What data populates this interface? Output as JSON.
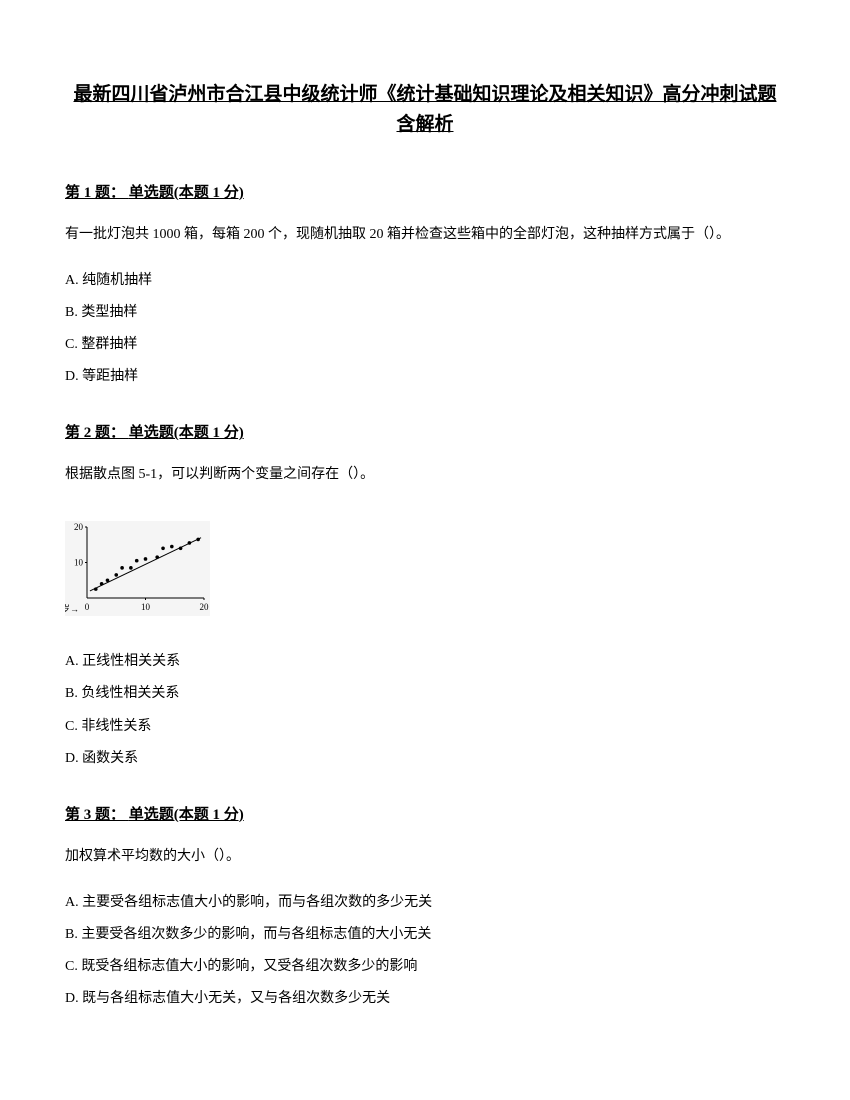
{
  "title": "最新四川省泸州市合江县中级统计师《统计基础知识理论及相关知识》高分冲刺试题含解析",
  "questions": [
    {
      "number": "第 1 题：",
      "type": "单选题(本题 1 分)",
      "text": "有一批灯泡共 1000 箱，每箱 200 个，现随机抽取 20 箱并检查这些箱中的全部灯泡，这种抽样方式属于（）。",
      "options": {
        "a": "A. 纯随机抽样",
        "b": "B. 类型抽样",
        "c": "C. 整群抽样",
        "d": "D. 等距抽样"
      }
    },
    {
      "number": "第 2 题：",
      "type": "单选题(本题 1 分)",
      "text": "根据散点图 5-1，可以判断两个变量之间存在（）。",
      "options": {
        "a": "A. 正线性相关关系",
        "b": "B. 负线性相关关系",
        "c": "C. 非线性关系",
        "d": "D. 函数关系"
      }
    },
    {
      "number": "第 3 题：",
      "type": "单选题(本题 1 分)",
      "text": "加权算术平均数的大小（）。",
      "options": {
        "a": "A. 主要受各组标志值大小的影响，而与各组次数的多少无关",
        "b": "B. 主要受各组次数多少的影响，而与各组标志值的大小无关",
        "c": "C. 既受各组标志值大小的影响，又受各组次数多少的影响",
        "d": "D. 既与各组标志值大小无关，又与各组次数多少无关"
      }
    }
  ],
  "chart": {
    "type": "scatter",
    "width": 145,
    "height": 95,
    "background_color": "#f5f5f5",
    "xlim": [
      0,
      20
    ],
    "ylim": [
      0,
      20
    ],
    "xticks": [
      0,
      10,
      20
    ],
    "yticks": [
      0,
      10,
      20
    ],
    "xtick_labels": [
      "0",
      "10",
      "20"
    ],
    "ytick_labels": [
      "0",
      "10",
      "20"
    ],
    "xlabel": "岁→",
    "axis_color": "#000000",
    "tick_fontsize": 9,
    "point_color": "#000000",
    "point_radius": 1.8,
    "line_color": "#000000",
    "line_width": 1,
    "scatter_points": [
      [
        1.5,
        2.5
      ],
      [
        2.5,
        4
      ],
      [
        3.5,
        5
      ],
      [
        5,
        6.5
      ],
      [
        6,
        8.5
      ],
      [
        7.5,
        8.5
      ],
      [
        8.5,
        10.5
      ],
      [
        10,
        11
      ],
      [
        12,
        11.5
      ],
      [
        13,
        14
      ],
      [
        14.5,
        14.5
      ],
      [
        16,
        14
      ],
      [
        17.5,
        15.5
      ],
      [
        19,
        16.5
      ]
    ],
    "trend_line": {
      "x1": 0.5,
      "y1": 2,
      "x2": 19.5,
      "y2": 17
    }
  }
}
